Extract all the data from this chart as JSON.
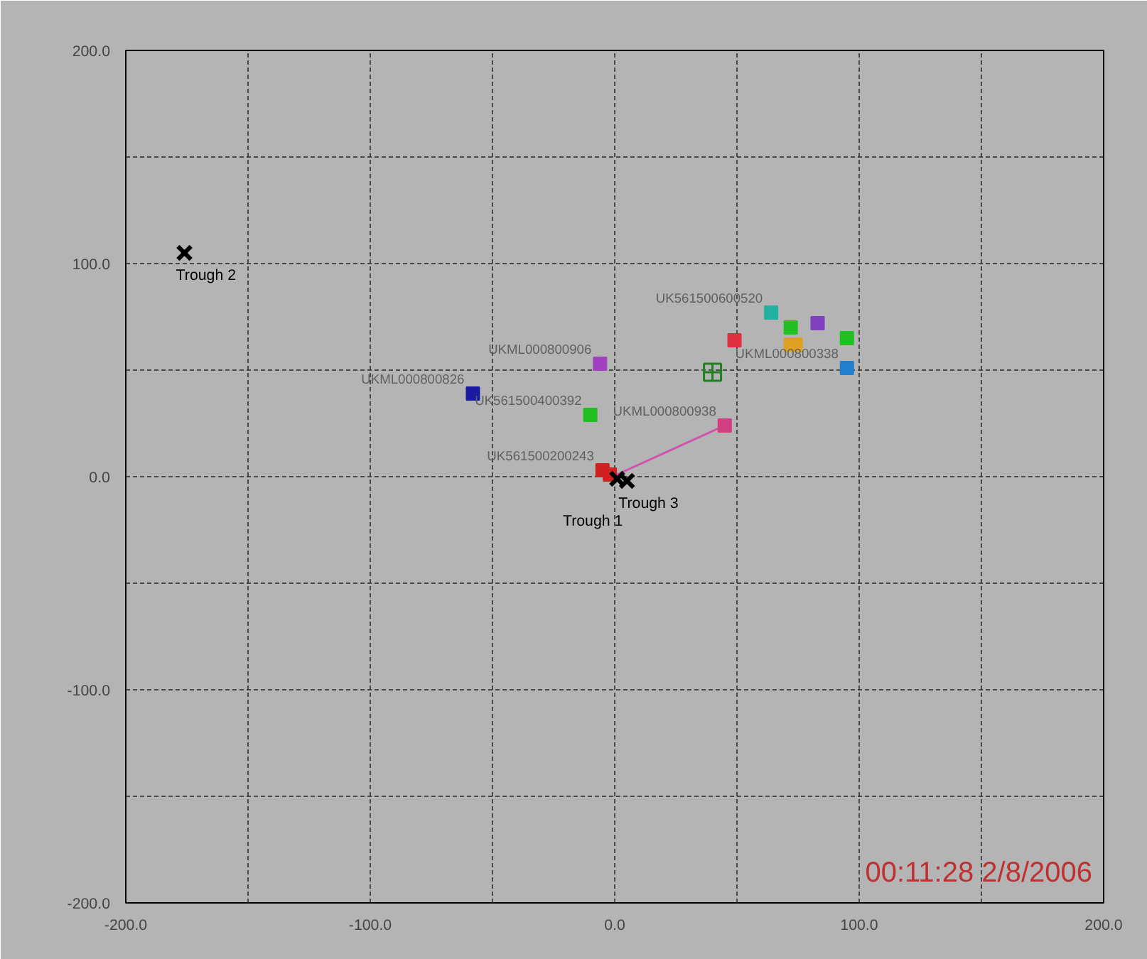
{
  "chart_data": {
    "type": "scatter",
    "marker": "square",
    "grid": true,
    "xlim": [
      -200,
      200
    ],
    "ylim": [
      -200,
      200
    ],
    "xticks": [
      {
        "value": -200,
        "label": "-200.0"
      },
      {
        "value": -150,
        "label": null
      },
      {
        "value": -100,
        "label": "-100.0"
      },
      {
        "value": -50,
        "label": null
      },
      {
        "value": 0,
        "label": "0.0"
      },
      {
        "value": 50,
        "label": null
      },
      {
        "value": 100,
        "label": "100.0"
      },
      {
        "value": 150,
        "label": null
      },
      {
        "value": 200,
        "label": "200.0"
      }
    ],
    "yticks": [
      {
        "value": -200,
        "label": "-200.0"
      },
      {
        "value": -150,
        "label": null
      },
      {
        "value": -100,
        "label": "-100.0"
      },
      {
        "value": -50,
        "label": null
      },
      {
        "value": 0,
        "label": "0.0"
      },
      {
        "value": 50,
        "label": null
      },
      {
        "value": 100,
        "label": "100.0"
      },
      {
        "value": 150,
        "label": null
      },
      {
        "value": 200,
        "label": "200.0"
      }
    ],
    "annotations": [
      "00:11:28 2/8/2006"
    ],
    "series": [
      {
        "type": "line",
        "color": "#d050b0",
        "x": [
          -1,
          45
        ],
        "values": [
          0,
          24
        ],
        "marker": "none"
      },
      {
        "name": "UKML000800826",
        "color": "#1a1aa0",
        "x": [
          -58
        ],
        "values": [
          39
        ]
      },
      {
        "name": "UKML000800906",
        "color": "#a040c0",
        "x": [
          -6
        ],
        "values": [
          53
        ]
      },
      {
        "name": "UK561500400392",
        "color": "#20c020",
        "x": [
          -10
        ],
        "values": [
          29
        ]
      },
      {
        "name": "UKML000800938",
        "color": "#d04080",
        "x": [
          45
        ],
        "values": [
          24
        ]
      },
      {
        "name": "UK561500200243",
        "color": "#d02020",
        "x": [
          -5
        ],
        "values": [
          3
        ]
      },
      {
        "color": "#d02020",
        "x": [
          -2
        ],
        "values": [
          1
        ]
      },
      {
        "name": "UK561500600520",
        "color": "#20b0a0",
        "x": [
          64
        ],
        "values": [
          77
        ]
      },
      {
        "color": "#20c020",
        "x": [
          72
        ],
        "values": [
          70
        ]
      },
      {
        "color": "#8040c0",
        "x": [
          83
        ],
        "values": [
          72
        ]
      },
      {
        "color": "#e03040",
        "x": [
          49
        ],
        "values": [
          64
        ]
      },
      {
        "color": "#e0a020",
        "x": [
          72,
          74
        ],
        "values": [
          62,
          62
        ]
      },
      {
        "color": "#20c020",
        "x": [
          95
        ],
        "values": [
          65
        ]
      },
      {
        "name": "UKML000800338",
        "color": "#2080d0",
        "x": [
          95
        ],
        "values": [
          51
        ]
      },
      {
        "color": "#208020",
        "x": [
          40
        ],
        "values": [
          49
        ],
        "marker": "cross"
      },
      {
        "name": "Trough 2",
        "color": "#000000",
        "x": [
          -176
        ],
        "values": [
          105
        ],
        "marker": "cross"
      },
      {
        "name": "Trough 1",
        "color": "#000000",
        "x": [
          1
        ],
        "values": [
          -1
        ],
        "marker": "cross"
      },
      {
        "name": "Trough 3",
        "color": "#000000",
        "x": [
          5
        ],
        "values": [
          -2
        ],
        "marker": "cross"
      }
    ]
  }
}
